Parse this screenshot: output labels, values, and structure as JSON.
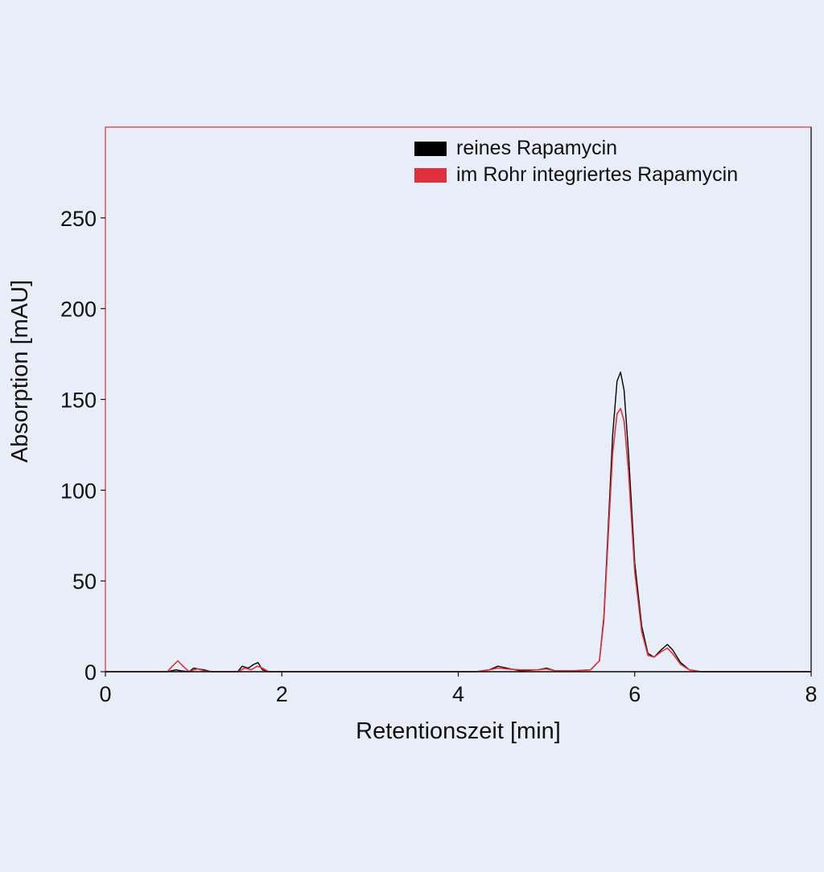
{
  "chart_data": {
    "type": "line",
    "title": "",
    "xlabel": "Retentionszeit [min]",
    "ylabel": "Absorption [mAU]",
    "xlim": [
      0,
      8
    ],
    "ylim": [
      0,
      300
    ],
    "xticks": [
      0,
      2,
      4,
      6,
      8
    ],
    "xtick_labels": [
      "0",
      "2",
      "4",
      "6",
      "8"
    ],
    "yticks": [
      0,
      50,
      100,
      150,
      200,
      250
    ],
    "ytick_labels": [
      "0",
      "50",
      "100",
      "150",
      "200",
      "250"
    ],
    "grid": false,
    "legend_position": "top-right",
    "frame_color": "#e0303c",
    "series": [
      {
        "name": "reines Rapamycin",
        "color": "#000000",
        "x": [
          0,
          0.7,
          0.8,
          0.86,
          0.95,
          1.0,
          1.05,
          1.12,
          1.2,
          1.5,
          1.55,
          1.62,
          1.68,
          1.73,
          1.78,
          1.85,
          4.2,
          4.35,
          4.45,
          4.55,
          4.7,
          4.9,
          5.0,
          5.1,
          5.3,
          5.5,
          5.6,
          5.65,
          5.7,
          5.75,
          5.8,
          5.84,
          5.88,
          5.93,
          6.0,
          6.08,
          6.15,
          6.22,
          6.3,
          6.37,
          6.43,
          6.52,
          6.62,
          6.75,
          7.0,
          8.0
        ],
        "y": [
          0,
          0,
          1,
          0.5,
          0,
          2,
          1.5,
          1,
          0,
          0,
          3,
          2,
          4,
          5,
          1,
          0,
          0,
          1,
          3,
          2,
          0.5,
          1,
          2,
          0.5,
          0.5,
          1,
          6,
          30,
          80,
          130,
          160,
          165,
          155,
          120,
          60,
          25,
          10,
          8,
          12,
          15,
          12,
          5,
          1,
          0,
          0,
          0
        ]
      },
      {
        "name": "im Rohr integriertes Rapamycin",
        "color": "#e0303c",
        "x": [
          0,
          0.7,
          0.76,
          0.82,
          0.88,
          0.95,
          1.0,
          1.05,
          1.12,
          1.2,
          1.5,
          1.58,
          1.65,
          1.72,
          1.78,
          1.85,
          4.2,
          4.35,
          4.45,
          4.55,
          4.7,
          4.9,
          5.0,
          5.1,
          5.3,
          5.5,
          5.6,
          5.65,
          5.7,
          5.75,
          5.8,
          5.84,
          5.88,
          5.93,
          6.0,
          6.08,
          6.15,
          6.22,
          6.3,
          6.37,
          6.43,
          6.52,
          6.62,
          6.75,
          7.0,
          8.0
        ],
        "y": [
          0,
          0,
          3,
          6,
          3,
          0,
          1,
          1.5,
          0.5,
          0,
          0,
          2,
          1,
          3,
          2,
          0,
          0,
          1,
          2,
          1.5,
          1,
          1,
          1.5,
          0.5,
          0.5,
          1,
          6,
          28,
          75,
          120,
          142,
          145,
          138,
          110,
          55,
          22,
          9,
          8,
          11,
          13,
          10,
          4,
          1,
          0,
          0,
          0
        ]
      }
    ]
  }
}
